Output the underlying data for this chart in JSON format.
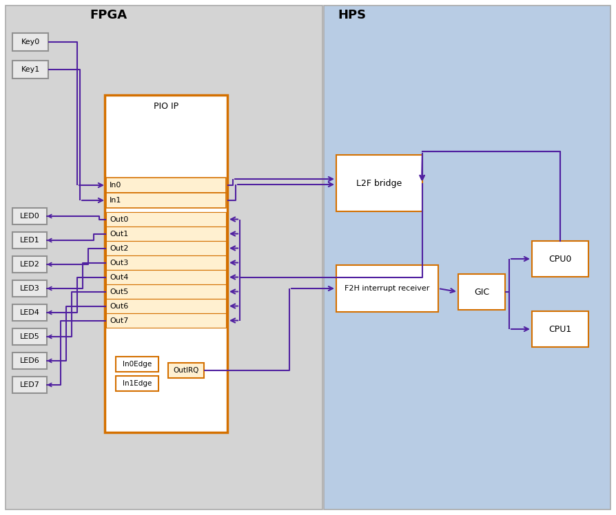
{
  "fig_width": 8.94,
  "fig_height": 7.48,
  "dpi": 100,
  "bg_color": "#ffffff",
  "fpga_bg": "#d4d4d4",
  "hps_bg": "#b8cce4",
  "fpga_label": "FPGA",
  "hps_label": "HPS",
  "orange": "#d47000",
  "orange_fill": "#fff0d0",
  "purple": "#5020a0",
  "gray_box_edge": "#909090",
  "gray_box_fill": "#e8e8e8",
  "white_fill": "#ffffff",
  "key0": "Key0",
  "key1": "Key1",
  "led_names": [
    "LED0",
    "LED1",
    "LED2",
    "LED3",
    "LED4",
    "LED5",
    "LED6",
    "LED7"
  ],
  "out_labels": [
    "Out0",
    "Out1",
    "Out2",
    "Out3",
    "Out4",
    "Out5",
    "Out6",
    "Out7"
  ],
  "pio_label": "PIO IP",
  "l2f_label": "L2F bridge",
  "f2h_label": "F2H interrupt receiver",
  "gic_label": "GIC",
  "cpu0_label": "CPU0",
  "cpu1_label": "CPU1",
  "in0edge_label": "In0Edge",
  "in1edge_label": "In1Edge",
  "outirq_label": "OutIRQ"
}
